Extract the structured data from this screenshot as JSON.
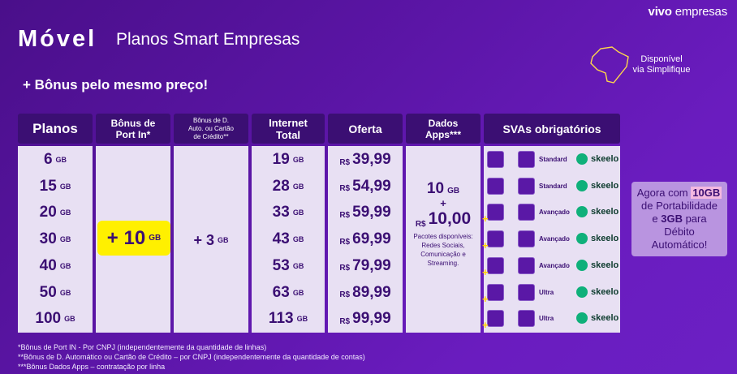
{
  "brand": {
    "part1": "vivo",
    "part2": "empresas"
  },
  "title": {
    "main": "Móvel",
    "sub": "Planos Smart Empresas"
  },
  "bonus_headline": "+ Bônus pelo mesmo preço!",
  "availability": {
    "line1": "Disponível",
    "line2": "via Simplifique"
  },
  "headers": {
    "planos": "Planos",
    "bonus_port_1": "Bônus de",
    "bonus_port_2": "Port In*",
    "bonus_d_1": "Bônus de D.",
    "bonus_d_2": "Auto. ou Cartão",
    "bonus_d_3": "de Crédito**",
    "internet_1": "Internet",
    "internet_2": "Total",
    "oferta": "Oferta",
    "dados_1": "Dados",
    "dados_2": "Apps***",
    "svas": "SVAs obrigatórios"
  },
  "unit_gb": "GB",
  "currency": "R$",
  "plans": [
    {
      "plano": "6",
      "internet": "19",
      "oferta": "39,99",
      "sva": "Standard"
    },
    {
      "plano": "15",
      "internet": "28",
      "oferta": "54,99",
      "sva": "Standard"
    },
    {
      "plano": "20",
      "internet": "33",
      "oferta": "59,99",
      "sva": "Avançado"
    },
    {
      "plano": "30",
      "internet": "43",
      "oferta": "69,99",
      "sva": "Avançado"
    },
    {
      "plano": "40",
      "internet": "53",
      "oferta": "79,99",
      "sva": "Avançado"
    },
    {
      "plano": "50",
      "internet": "63",
      "oferta": "89,99",
      "sva": "Ultra"
    },
    {
      "plano": "100",
      "internet": "113",
      "oferta": "99,99",
      "sva": "Ultra"
    }
  ],
  "port_bonus": "+ 10",
  "d_bonus": "+ 3",
  "dados_apps": {
    "amount": "10",
    "plus": "+",
    "price": "10,00",
    "desc1": "Pacotes disponíveis:",
    "desc2": "Redes Sociais,",
    "desc3": "Comunicação e",
    "desc4": "Streaming."
  },
  "skeelo": "skeelo",
  "side_box": {
    "l1a": "Agora com ",
    "l1b": "10GB",
    "l2": "de Portabilidade",
    "l3a": "e ",
    "l3b": "3GB",
    "l3c": " para",
    "l4": "Débito",
    "l5": "Automático!"
  },
  "footnotes": [
    "*Bônus de Port IN  - Por CNPJ (independentemente da quantidade de linhas)",
    "**Bônus de D. Automático ou Cartão de Crédito – por CNPJ (independentemente da quantidade de contas)",
    "***Bônus Dados Apps – contratação por linha"
  ],
  "colors": {
    "bg": "#5b15a6",
    "header": "#3b0f73",
    "cell": "#e8e0f3",
    "highlight": "#fff000",
    "side": "#b994e0"
  }
}
